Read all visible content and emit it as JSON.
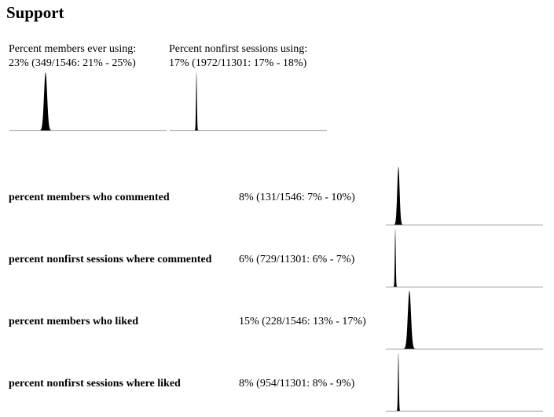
{
  "title": "Support",
  "summary_blocks": [
    {
      "label": "Percent members ever using:",
      "value_text": "23% (349/1546: 21% - 25%)"
    },
    {
      "label": "Percent nonfirst sessions using:",
      "value_text": "17% (1972/11301: 17% - 18%)"
    }
  ],
  "rows": [
    {
      "label": "percent members who commented",
      "value_text": "8% (131/1546: 7% - 10%)"
    },
    {
      "label": "percent nonfirst sessions where commented",
      "value_text": "6% (729/11301: 6% - 7%)"
    },
    {
      "label": "percent members who liked",
      "value_text": "15% (228/1546: 13% - 17%)"
    },
    {
      "label": "percent nonfirst sessions where liked",
      "value_text": "8% (954/11301: 8% - 9%)"
    }
  ],
  "chart_data": [
    {
      "type": "area",
      "series_label": "Percent members ever using",
      "center": 23,
      "ci": [
        21,
        25
      ],
      "xlim": [
        0,
        100
      ]
    },
    {
      "type": "area",
      "series_label": "Percent nonfirst sessions using",
      "center": 17,
      "ci": [
        17,
        18
      ],
      "xlim": [
        0,
        100
      ]
    },
    {
      "type": "area",
      "series_label": "percent members who commented",
      "center": 8,
      "ci": [
        7,
        10
      ],
      "xlim": [
        0,
        100
      ]
    },
    {
      "type": "area",
      "series_label": "percent nonfirst sessions where commented",
      "center": 6,
      "ci": [
        6,
        7
      ],
      "xlim": [
        0,
        100
      ]
    },
    {
      "type": "area",
      "series_label": "percent members who liked",
      "center": 15,
      "ci": [
        13,
        17
      ],
      "xlim": [
        0,
        100
      ]
    },
    {
      "type": "area",
      "series_label": "percent nonfirst sessions where liked",
      "center": 8,
      "ci": [
        8,
        9
      ],
      "xlim": [
        0,
        100
      ]
    }
  ]
}
